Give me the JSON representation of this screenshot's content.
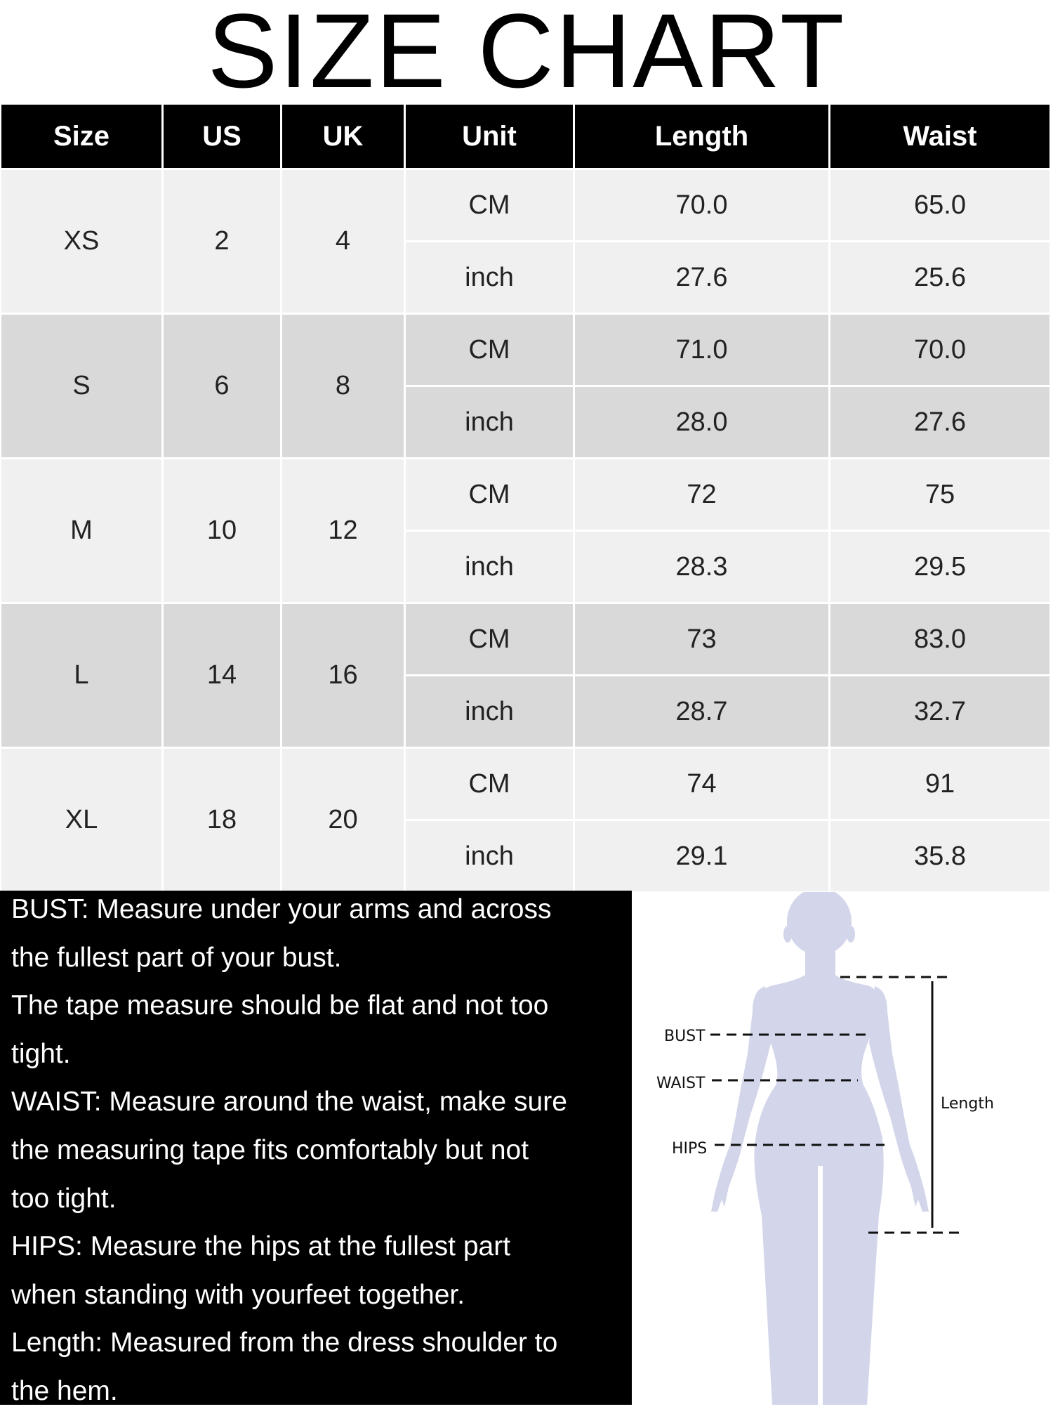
{
  "title": "SIZE CHART",
  "table": {
    "headers": [
      "Size",
      "US",
      "UK",
      "Unit",
      "Length",
      "Waist"
    ],
    "row_colors": [
      "#f0f0f0",
      "#d9d9d9"
    ],
    "rows": [
      {
        "size": "XS",
        "us": "2",
        "uk": "4",
        "cm": {
          "unit": "CM",
          "length": "70.0",
          "waist": "65.0"
        },
        "inch": {
          "unit": "inch",
          "length": "27.6",
          "waist": "25.6"
        }
      },
      {
        "size": "S",
        "us": "6",
        "uk": "8",
        "cm": {
          "unit": "CM",
          "length": "71.0",
          "waist": "70.0"
        },
        "inch": {
          "unit": "inch",
          "length": "28.0",
          "waist": "27.6"
        }
      },
      {
        "size": "M",
        "us": "10",
        "uk": "12",
        "cm": {
          "unit": "CM",
          "length": "72",
          "waist": "75"
        },
        "inch": {
          "unit": "inch",
          "length": "28.3",
          "waist": "29.5"
        }
      },
      {
        "size": "L",
        "us": "14",
        "uk": "16",
        "cm": {
          "unit": "CM",
          "length": "73",
          "waist": "83.0"
        },
        "inch": {
          "unit": "inch",
          "length": "28.7",
          "waist": "32.7"
        }
      },
      {
        "size": "XL",
        "us": "18",
        "uk": "20",
        "cm": {
          "unit": "CM",
          "length": "74",
          "waist": "91"
        },
        "inch": {
          "unit": "inch",
          "length": "29.1",
          "waist": "35.8"
        }
      }
    ]
  },
  "notes": [
    "BUST: Measure under your arms and across",
    "the fullest part of your bust.",
    "The tape measure should be flat and not too",
    "tight.",
    "WAIST: Measure around the waist, make sure",
    "the measuring tape fits comfortably but not",
    "too tight.",
    "HIPS: Measure the hips at the fullest part",
    "when standing with yourfeet together.",
    "Length: Measured from the dress shoulder to",
    "the hem."
  ],
  "figure": {
    "labels": {
      "bust": "BUST",
      "waist": "WAIST",
      "hips": "HIPS",
      "length": "Length"
    },
    "silhouette_color": "#d3d6ea"
  }
}
